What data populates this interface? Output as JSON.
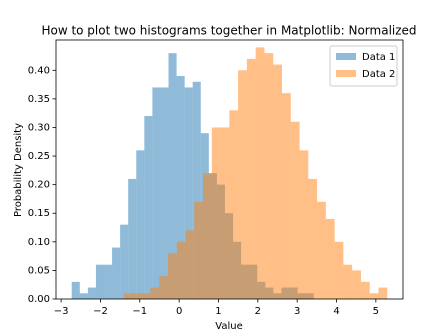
{
  "chart_data": {
    "type": "histogram",
    "title": "How to plot two histograms together in Matplotlib: Normalized",
    "x_label": "Value",
    "y_label": "Probability Density",
    "series": [
      {
        "name": "Data 1",
        "color": "#1f77b4",
        "opacity": 0.5,
        "bins": [
          -2.73,
          -2.525,
          -2.32,
          -2.115,
          -1.91,
          -1.705,
          -1.5,
          -1.295,
          -1.09,
          -0.885,
          -0.68,
          -0.475,
          -0.27,
          -0.065,
          0.14,
          0.345,
          0.55,
          0.755,
          0.96,
          1.165,
          1.37,
          1.575,
          1.78,
          1.985,
          2.19,
          2.395,
          2.6,
          2.805,
          3.01,
          3.215,
          3.42
        ],
        "values": [
          0.03,
          0.01,
          0.02,
          0.06,
          0.06,
          0.09,
          0.13,
          0.21,
          0.26,
          0.32,
          0.37,
          0.37,
          0.43,
          0.39,
          0.37,
          0.38,
          0.29,
          0.22,
          0.2,
          0.15,
          0.1,
          0.06,
          0.06,
          0.03,
          0.02,
          0.01,
          0.02,
          0.02,
          0.01,
          0.01
        ]
      },
      {
        "name": "Data 2",
        "color": "#ff7f0e",
        "opacity": 0.5,
        "bins": [
          -1.4,
          -1.177,
          -0.954,
          -0.731,
          -0.508,
          -0.285,
          -0.062,
          0.161,
          0.384,
          0.607,
          0.83,
          1.053,
          1.276,
          1.499,
          1.722,
          1.945,
          2.168,
          2.391,
          2.614,
          2.837,
          3.06,
          3.283,
          3.506,
          3.729,
          3.952,
          4.175,
          4.398,
          4.621,
          4.844,
          5.067,
          5.29
        ],
        "values": [
          0.01,
          0.01,
          0.01,
          0.02,
          0.04,
          0.08,
          0.1,
          0.12,
          0.17,
          0.22,
          0.3,
          0.3,
          0.33,
          0.4,
          0.42,
          0.44,
          0.43,
          0.41,
          0.36,
          0.31,
          0.26,
          0.21,
          0.17,
          0.14,
          0.1,
          0.06,
          0.05,
          0.03,
          0.01,
          0.02
        ]
      }
    ],
    "xlim": [
      -3.13,
      5.69
    ],
    "ylim": [
      0,
      0.453
    ],
    "xticks": [
      {
        "value": -3,
        "label": "−3"
      },
      {
        "value": -2,
        "label": "−2"
      },
      {
        "value": -1,
        "label": "−1"
      },
      0,
      1,
      2,
      3,
      4,
      5
    ],
    "yticks": [
      {
        "value": 0,
        "label": "0.00"
      },
      {
        "value": 0.05,
        "label": "0.05"
      },
      {
        "value": 0.1,
        "label": "0.10"
      },
      {
        "value": 0.15,
        "label": "0.15"
      },
      {
        "value": 0.2,
        "label": "0.20"
      },
      {
        "value": 0.25,
        "label": "0.25"
      },
      {
        "value": 0.3,
        "label": "0.30"
      },
      {
        "value": 0.35,
        "label": "0.35"
      },
      {
        "value": 0.4,
        "label": "0.40"
      }
    ],
    "legend": "upper right",
    "grid": false
  }
}
